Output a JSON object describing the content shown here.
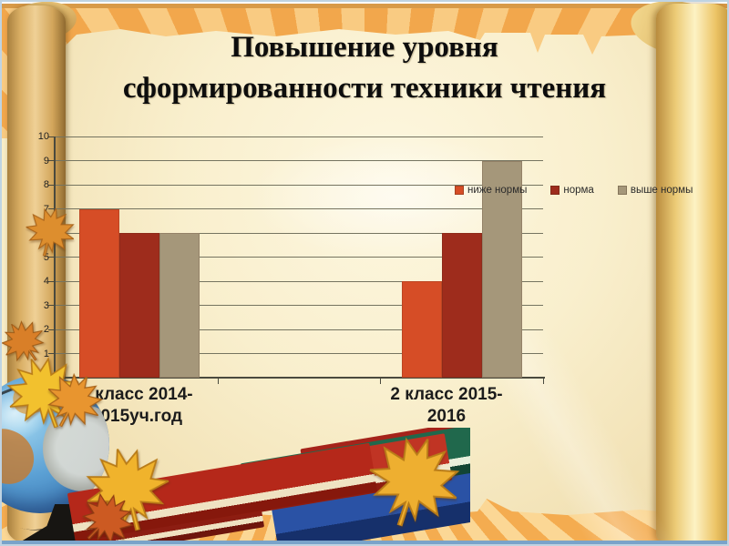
{
  "slide": {
    "title": "Повышение уровня\nсформированности техники чтения"
  },
  "chart_data": {
    "type": "bar",
    "title": "",
    "categories": [
      "1 класс 2014-\n2015уч.год",
      "2 класс 2015-\n2016"
    ],
    "series": [
      {
        "name": "ниже нормы",
        "color": "#d64d26",
        "values": [
          7,
          4
        ]
      },
      {
        "name": "норма",
        "color": "#9e2c1c",
        "values": [
          6,
          6
        ]
      },
      {
        "name": "выше нормы",
        "color": "#a5977a",
        "values": [
          6,
          9
        ]
      }
    ],
    "xlabel": "",
    "ylabel": "",
    "ylim": [
      0,
      10
    ],
    "ytick_step": 1,
    "grid": true,
    "legend_position": "overlay-right"
  }
}
